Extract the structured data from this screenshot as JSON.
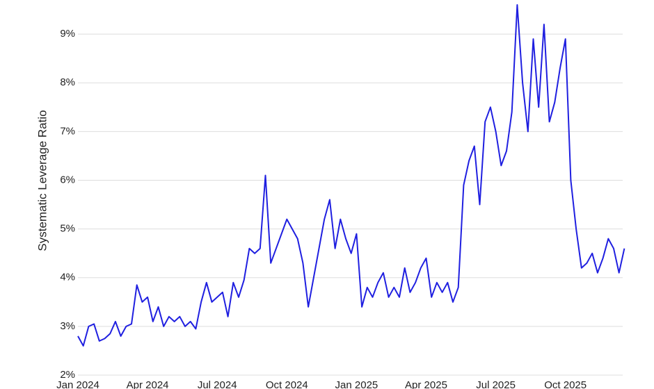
{
  "chart_data": {
    "type": "line",
    "y_label": "Systematic Leverage Ratio",
    "categories": [
      "Jan 2024",
      null,
      null,
      null,
      null,
      null,
      null,
      null,
      null,
      null,
      null,
      null,
      null,
      "Apr 2024",
      null,
      null,
      null,
      null,
      null,
      null,
      null,
      null,
      null,
      null,
      null,
      null,
      "Jul 2024",
      null,
      null,
      null,
      null,
      null,
      null,
      null,
      null,
      null,
      null,
      null,
      null,
      "Oct 2024",
      null,
      null,
      null,
      null,
      null,
      null,
      null,
      null,
      null,
      null,
      null,
      null,
      "Jan 2025",
      null,
      null,
      null,
      null,
      null,
      null,
      null,
      null,
      null,
      null,
      null,
      null,
      "Apr 2025",
      null,
      null,
      null,
      null,
      null,
      null,
      null,
      null,
      null,
      null,
      null,
      null,
      "Jul 2025",
      null,
      null,
      null,
      null,
      null,
      null,
      null,
      null,
      null,
      null,
      null,
      null,
      "Oct 2025",
      null,
      null,
      null,
      null,
      null,
      null,
      null,
      null,
      null,
      null,
      null
    ],
    "series": [
      {
        "color": "#1f1fe0",
        "values": [
          2.8,
          2.6,
          3.0,
          3.05,
          2.7,
          2.75,
          2.85,
          3.1,
          2.8,
          3.0,
          3.05,
          3.85,
          3.5,
          3.6,
          3.1,
          3.4,
          3.0,
          3.2,
          3.1,
          3.2,
          3.0,
          3.1,
          2.95,
          3.5,
          3.9,
          3.5,
          3.6,
          3.7,
          3.2,
          3.9,
          3.6,
          3.95,
          4.6,
          4.5,
          4.6,
          6.1,
          4.3,
          4.6,
          4.9,
          5.2,
          5.0,
          4.8,
          4.3,
          3.4,
          4.0,
          4.6,
          5.2,
          5.6,
          4.6,
          5.2,
          4.8,
          4.5,
          4.9,
          3.4,
          3.8,
          3.6,
          3.9,
          4.1,
          3.6,
          3.8,
          3.6,
          4.2,
          3.7,
          3.9,
          4.2,
          4.4,
          3.6,
          3.9,
          3.7,
          3.9,
          3.5,
          3.8,
          5.9,
          6.4,
          6.7,
          5.5,
          7.2,
          7.5,
          7.0,
          6.3,
          6.6,
          7.4,
          9.6,
          8.0,
          7.0,
          8.9,
          7.5,
          9.2,
          7.2,
          7.6,
          8.3,
          8.9,
          6.0,
          5.0,
          4.2,
          4.3,
          4.5,
          4.1,
          4.4,
          4.8,
          4.6,
          4.1,
          4.6
        ]
      }
    ],
    "ylim": [
      2,
      9.7
    ],
    "yticks": [
      {
        "value": 2,
        "label": "2%"
      },
      {
        "value": 3,
        "label": "3%"
      },
      {
        "value": 4,
        "label": "4%"
      },
      {
        "value": 5,
        "label": "5%"
      },
      {
        "value": 6,
        "label": "6%"
      },
      {
        "value": 7,
        "label": "7%"
      },
      {
        "value": 8,
        "label": "8%"
      },
      {
        "value": 9,
        "label": "9%"
      }
    ],
    "grid": true
  }
}
